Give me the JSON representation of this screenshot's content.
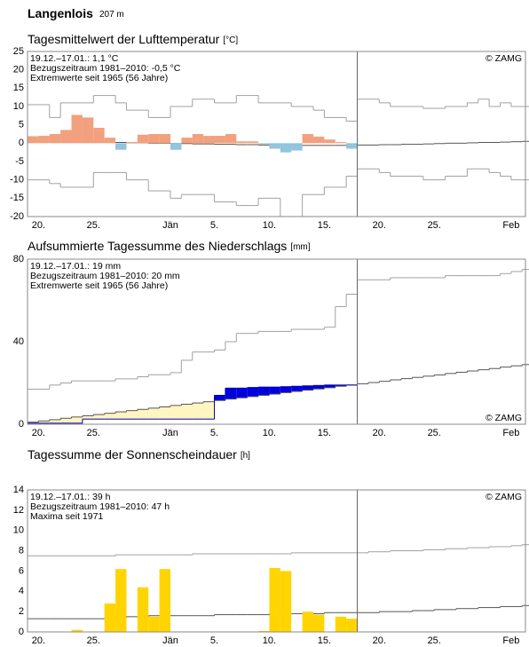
{
  "header": {
    "station": "Langenlois",
    "elevation": "207 m"
  },
  "chart_data": [
    {
      "type": "bar",
      "title": "Tagesmittelwert der Lufttemperatur",
      "unit": "[°C]",
      "annotations": [
        "19.12.–17.01.: 1,1 °C",
        "Bezugszeitraum 1981–2010: -0,5 °C",
        "Extremwerte seit 1965 (56 Jahre)"
      ],
      "annotation_colors": [
        "#000000",
        "#8c8c8c",
        "#c4c4c4"
      ],
      "credit": "© ZAMG",
      "credit_corner": "top-right",
      "xlim": [
        0,
        45.3
      ],
      "ylim": [
        -20,
        25
      ],
      "yticks": [
        -20,
        -15,
        -10,
        -5,
        0,
        5,
        10,
        15,
        20,
        25
      ],
      "xticks": [
        {
          "value": 1,
          "label": "20."
        },
        {
          "value": 6,
          "label": "25."
        },
        {
          "value": 13,
          "label": "Jän"
        },
        {
          "value": 17,
          "label": "5."
        },
        {
          "value": 22,
          "label": "10."
        },
        {
          "value": 27,
          "label": "15."
        },
        {
          "value": 32,
          "label": "20."
        },
        {
          "value": 37,
          "label": "25."
        },
        {
          "value": 44,
          "label": "Feb"
        }
      ],
      "vline": 30,
      "grid": false,
      "x": [
        0,
        1,
        2,
        3,
        4,
        5,
        6,
        7,
        8,
        9,
        10,
        11,
        12,
        13,
        14,
        15,
        16,
        17,
        18,
        19,
        20,
        21,
        22,
        23,
        24,
        25,
        26,
        27,
        28,
        29,
        30,
        31,
        32,
        33,
        34,
        35,
        36,
        37,
        38,
        39,
        40,
        41,
        42,
        43,
        44,
        45
      ],
      "series": [
        {
          "type": "bar",
          "color": "#f2a07e",
          "negative_color": "#92c5de",
          "values": [
            1.9,
            2,
            2.5,
            3.6,
            7.7,
            7,
            4.2,
            1.5,
            -1.8,
            0.3,
            2.3,
            2.5,
            2.5,
            -1.8,
            1.5,
            2.5,
            2,
            2,
            2.5,
            0.5,
            0.5,
            -0.3,
            -1.5,
            -2.5,
            -2,
            2.5,
            1.8,
            1,
            0.3,
            -1.5,
            null,
            null,
            null,
            null,
            null,
            null,
            null,
            null,
            null,
            null,
            null,
            null,
            null,
            null,
            null,
            null
          ]
        },
        {
          "type": "step",
          "color": "#555555",
          "values": [
            0.6,
            0.5,
            0.5,
            0.4,
            0.4,
            0.3,
            0.3,
            0.2,
            0.2,
            0.1,
            0.1,
            0,
            0,
            -0.1,
            -0.1,
            -0.2,
            -0.2,
            -0.3,
            -0.3,
            -0.4,
            -0.4,
            -0.5,
            -0.5,
            -0.5,
            -0.6,
            -0.6,
            -0.6,
            -0.6,
            -0.6,
            -0.5,
            -0.5,
            -0.5,
            -0.4,
            -0.4,
            -0.3,
            -0.3,
            -0.2,
            -0.1,
            0,
            0,
            0.1,
            0.2,
            0.2,
            0.3,
            0.4,
            0.5
          ]
        },
        {
          "type": "step",
          "color": "#a0a0a0",
          "values": [
            10.5,
            10.5,
            7,
            11,
            11,
            11,
            13,
            13,
            11,
            9,
            9,
            7,
            7,
            10,
            10,
            12,
            12,
            11,
            11,
            13,
            13,
            11,
            11,
            11,
            10,
            10,
            9,
            7,
            7,
            6,
            12,
            12,
            11,
            10,
            10,
            10,
            9.5,
            9.5,
            10,
            10,
            11,
            12,
            10,
            11,
            10,
            10
          ]
        },
        {
          "type": "step",
          "color": "#a0a0a0",
          "values": [
            -10,
            -10,
            -11,
            -12,
            -12,
            -12,
            -8,
            -8,
            -8,
            -10,
            -10,
            -13,
            -13,
            -15,
            -14,
            -14,
            -14,
            -16,
            -16,
            -17,
            -17,
            -15,
            -15,
            -20,
            -20,
            -14,
            -14,
            -12,
            -12,
            -9,
            -7,
            -7,
            -8,
            -9,
            -9,
            -9,
            -10,
            -10,
            -9,
            -9,
            -7,
            -7,
            -8,
            -9,
            -10,
            -10
          ]
        }
      ]
    },
    {
      "type": "line",
      "title": "Aufsummierte Tagessumme des Niederschlags",
      "unit": "[mm]",
      "annotations": [
        "19.12.–17.01.: 19 mm",
        "Bezugszeitraum 1981–2010: 20 mm",
        "Extremwerte seit 1965 (56 Jahre)"
      ],
      "annotation_colors": [
        "#000000",
        "#8c8c8c",
        "#c4c4c4"
      ],
      "credit": "© ZAMG",
      "credit_corner": "bottom-right",
      "fill_above": "#0000e0",
      "fill_below": "#fff5c0",
      "xlim": [
        0,
        45.3
      ],
      "ylim": [
        0,
        80
      ],
      "yticks": [
        0,
        40,
        80
      ],
      "xticks": [
        {
          "value": 1,
          "label": "20."
        },
        {
          "value": 6,
          "label": "25."
        },
        {
          "value": 13,
          "label": "Jän"
        },
        {
          "value": 17,
          "label": "5."
        },
        {
          "value": 22,
          "label": "10."
        },
        {
          "value": 27,
          "label": "15."
        },
        {
          "value": 32,
          "label": "20."
        },
        {
          "value": 37,
          "label": "25."
        },
        {
          "value": 44,
          "label": "Feb"
        }
      ],
      "vline": 30,
      "grid": false,
      "x": [
        0,
        1,
        2,
        3,
        4,
        5,
        6,
        7,
        8,
        9,
        10,
        11,
        12,
        13,
        14,
        15,
        16,
        17,
        18,
        19,
        20,
        21,
        22,
        23,
        24,
        25,
        26,
        27,
        28,
        29,
        30,
        31,
        32,
        33,
        34,
        35,
        36,
        37,
        38,
        39,
        40,
        41,
        42,
        43,
        44,
        45
      ],
      "series": [
        {
          "type": "step",
          "color": "#0000b0",
          "values": [
            0.5,
            0.5,
            0.5,
            0.5,
            0.5,
            2.5,
            2.5,
            2.5,
            2.5,
            2.5,
            2.5,
            2.5,
            2.5,
            2.5,
            2.5,
            2.5,
            2.5,
            14,
            17.5,
            17.5,
            17.8,
            18,
            18,
            18.2,
            18.4,
            18.6,
            18.8,
            19,
            19,
            19,
            null,
            null,
            null,
            null,
            null,
            null,
            null,
            null,
            null,
            null,
            null,
            null,
            null,
            null,
            null,
            null
          ]
        },
        {
          "type": "step",
          "color": "#555555",
          "values": [
            1,
            1.6,
            2.2,
            2.9,
            3.5,
            4.1,
            4.7,
            5.3,
            6,
            6.6,
            7.2,
            7.8,
            8.4,
            9.1,
            9.7,
            10.3,
            10.9,
            11.5,
            12.2,
            12.8,
            13.4,
            14,
            14.6,
            15.3,
            15.9,
            16.5,
            17.1,
            17.7,
            18.4,
            19,
            19.6,
            20.2,
            20.8,
            21.5,
            22.1,
            22.7,
            23.3,
            23.9,
            24.6,
            25.2,
            25.8,
            26.4,
            27,
            27.7,
            28.3,
            28.9
          ]
        },
        {
          "type": "step",
          "color": "#a0a0a0",
          "values": [
            17,
            17,
            19,
            20,
            21,
            21,
            21,
            21,
            22,
            22,
            23,
            24,
            24,
            25,
            31,
            35,
            35,
            36,
            40,
            44,
            44,
            45,
            45,
            45,
            46,
            46,
            46,
            47,
            57,
            63,
            70,
            70,
            70,
            71,
            71,
            71,
            71,
            71,
            72,
            72,
            72,
            72,
            72,
            73,
            74,
            75
          ]
        }
      ]
    },
    {
      "type": "bar",
      "title": "Tagessumme der Sonnenscheindauer",
      "unit": "[h]",
      "annotations": [
        "19.12.–17.01.: 39 h",
        "Bezugszeitraum 1981–2010: 47 h",
        "Maxima seit 1971"
      ],
      "annotation_colors": [
        "#000000",
        "#8c8c8c",
        "#c4c4c4"
      ],
      "credit": "© ZAMG",
      "credit_corner": "top-right",
      "xlim": [
        0,
        45.3
      ],
      "ylim": [
        0,
        14
      ],
      "yticks": [
        0,
        2,
        4,
        6,
        8,
        10,
        12,
        14
      ],
      "xticks": [
        {
          "value": 1,
          "label": "20."
        },
        {
          "value": 6,
          "label": "25."
        },
        {
          "value": 13,
          "label": "Jän"
        },
        {
          "value": 17,
          "label": "5."
        },
        {
          "value": 22,
          "label": "10."
        },
        {
          "value": 27,
          "label": "15."
        },
        {
          "value": 32,
          "label": "20."
        },
        {
          "value": 37,
          "label": "25."
        },
        {
          "value": 44,
          "label": "Feb"
        }
      ],
      "vline": 30,
      "grid": false,
      "x": [
        0,
        1,
        2,
        3,
        4,
        5,
        6,
        7,
        8,
        9,
        10,
        11,
        12,
        13,
        14,
        15,
        16,
        17,
        18,
        19,
        20,
        21,
        22,
        23,
        24,
        25,
        26,
        27,
        28,
        29,
        30,
        31,
        32,
        33,
        34,
        35,
        36,
        37,
        38,
        39,
        40,
        41,
        42,
        43,
        44,
        45
      ],
      "series": [
        {
          "type": "bar",
          "color": "#ffd400",
          "negative_color": "#ffd400",
          "values": [
            0,
            0,
            0,
            0,
            0.2,
            0,
            0,
            2.8,
            6.2,
            0,
            4.4,
            1.5,
            6.2,
            0,
            0,
            0,
            0,
            0,
            0,
            0,
            0,
            0.1,
            6.3,
            6,
            0,
            2,
            1.7,
            0,
            1.5,
            1.3,
            null,
            null,
            null,
            null,
            null,
            null,
            null,
            null,
            null,
            null,
            null,
            null,
            null,
            null,
            null,
            null
          ]
        },
        {
          "type": "step",
          "color": "#555555",
          "values": [
            1.3,
            1.3,
            1.3,
            1.3,
            1.3,
            1.3,
            1.3,
            1.3,
            1.4,
            1.5,
            1.5,
            1.6,
            1.6,
            1.6,
            1.6,
            1.6,
            1.6,
            1.7,
            1.7,
            1.7,
            1.7,
            1.7,
            1.8,
            1.8,
            1.8,
            1.8,
            1.8,
            1.9,
            1.9,
            1.9,
            1.9,
            1.9,
            2,
            2,
            2,
            2.1,
            2.1,
            2.2,
            2.2,
            2.3,
            2.3,
            2.4,
            2.4,
            2.5,
            2.5,
            2.6
          ]
        },
        {
          "type": "step",
          "color": "#a0a0a0",
          "values": [
            7.5,
            7.5,
            7.5,
            7.5,
            7.5,
            7.5,
            7.5,
            7.5,
            7.6,
            7.6,
            7.6,
            7.6,
            7.6,
            7.6,
            7.6,
            7.7,
            7.7,
            7.7,
            7.7,
            7.7,
            7.7,
            7.7,
            7.7,
            7.7,
            7.8,
            7.8,
            7.8,
            7.8,
            7.8,
            7.8,
            7.8,
            7.9,
            7.9,
            8,
            8,
            8,
            8.1,
            8.1,
            8.2,
            8.2,
            8.3,
            8.3,
            8.4,
            8.4,
            8.5,
            8.6
          ]
        }
      ]
    }
  ]
}
